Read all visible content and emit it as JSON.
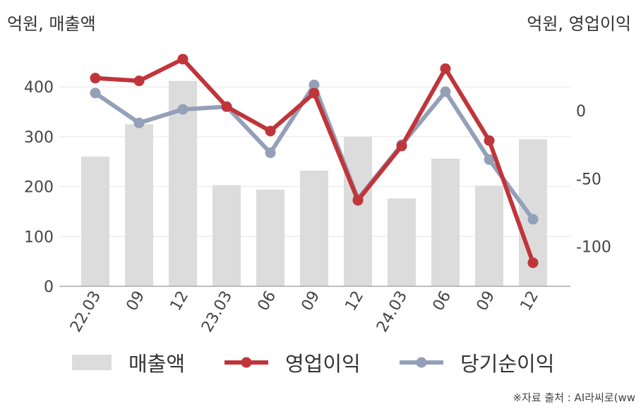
{
  "units": {
    "left": "억원, 매출액",
    "right": "억원, 영업이익"
  },
  "legend": {
    "revenue": "매출액",
    "operating_profit": "영업이익",
    "net_profit": "당기순이익"
  },
  "source": "※자료 출처 : AI라씨로(ww",
  "colors": {
    "revenue": "#dcdcdc",
    "operating_profit": "#c0353a",
    "net_profit": "#94a0b8"
  },
  "chart_data": {
    "type": "bar",
    "categories": [
      "22.03",
      "09",
      "12",
      "23.03",
      "06",
      "09",
      "12",
      "24.03",
      "06",
      "09",
      "12"
    ],
    "series": [
      {
        "name": "매출액",
        "type": "bar",
        "axis": "left",
        "values": [
          260,
          325,
          412,
          203,
          194,
          232,
          300,
          176,
          256,
          202,
          295
        ]
      },
      {
        "name": "영업이익",
        "type": "line",
        "axis": "right",
        "values": [
          24,
          22,
          38,
          3,
          -15,
          13,
          -66,
          -26,
          31,
          -22,
          -112
        ]
      },
      {
        "name": "당기순이익",
        "type": "line",
        "axis": "right",
        "values": [
          13,
          -9,
          1,
          3,
          -31,
          19,
          -65,
          -25,
          14,
          -36,
          -80
        ]
      }
    ],
    "y_left": {
      "ticks": [
        0,
        100,
        200,
        300,
        400
      ],
      "range": [
        0,
        460
      ]
    },
    "y_right": {
      "ticks": [
        0,
        -50,
        -100
      ],
      "range": [
        -130,
        45
      ]
    },
    "grid": true
  }
}
